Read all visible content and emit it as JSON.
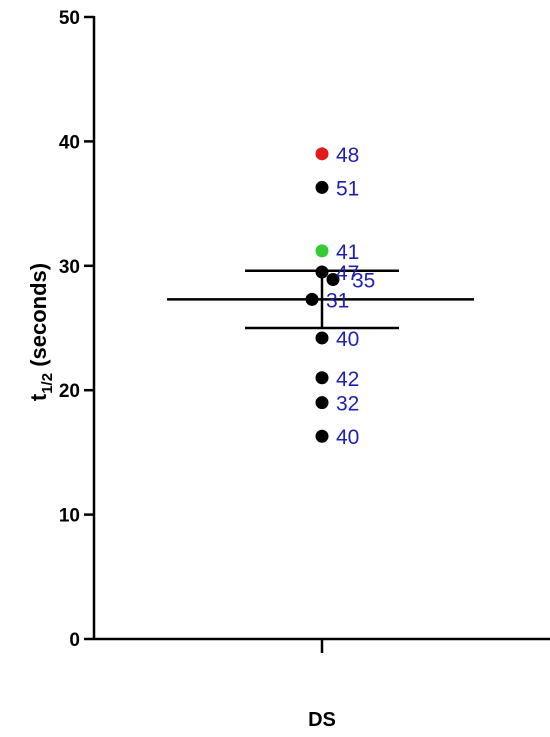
{
  "chart_data": {
    "type": "scatter",
    "title": "",
    "xlabel": "",
    "ylabel_main": "t",
    "ylabel_sub": "1/2",
    "ylabel_rest": " (seconds)",
    "categories": [
      "DS"
    ],
    "ylim": [
      0,
      50
    ],
    "yticks": [
      "0",
      "10",
      "20",
      "30",
      "40",
      "50"
    ],
    "points": [
      {
        "x": "DS",
        "y": 39.0,
        "label": "48",
        "color": "#e31a1c"
      },
      {
        "x": "DS",
        "y": 36.3,
        "label": "51",
        "color": "#000000"
      },
      {
        "x": "DS",
        "y": 31.2,
        "label": "41",
        "color": "#33cc33"
      },
      {
        "x": "DS",
        "y": 29.5,
        "label": "47",
        "color": "#000000"
      },
      {
        "x": "DS",
        "y": 28.9,
        "label": "35",
        "color": "#000000"
      },
      {
        "x": "DS",
        "y": 27.3,
        "label": "31",
        "color": "#000000"
      },
      {
        "x": "DS",
        "y": 24.2,
        "label": "40",
        "color": "#000000"
      },
      {
        "x": "DS",
        "y": 21.0,
        "label": "42",
        "color": "#000000"
      },
      {
        "x": "DS",
        "y": 19.0,
        "label": "32",
        "color": "#000000"
      },
      {
        "x": "DS",
        "y": 16.3,
        "label": "40",
        "color": "#000000"
      }
    ],
    "summary": {
      "mean": 27.3,
      "error_upper": 29.6,
      "error_lower": 25.0
    },
    "grid": false,
    "legend": "none"
  }
}
